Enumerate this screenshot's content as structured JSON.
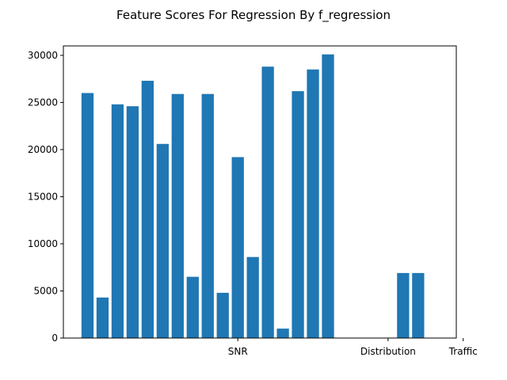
{
  "chart_data": {
    "type": "bar",
    "title": "Feature Scores For Regression By f_regression",
    "xlabel": "",
    "ylabel": "",
    "ylim": [
      0,
      31000
    ],
    "yticks": [
      0,
      5000,
      10000,
      15000,
      20000,
      25000,
      30000
    ],
    "color": "#1f77b4",
    "xticks": [
      {
        "label": "SNR",
        "index": 10
      },
      {
        "label": "Distribution",
        "index": 20
      },
      {
        "label": "Traffic",
        "index": 25
      }
    ],
    "values": [
      26000,
      4300,
      24800,
      24600,
      27300,
      20600,
      25900,
      6500,
      25900,
      4800,
      19200,
      8600,
      28800,
      1000,
      26200,
      28500,
      30100,
      0,
      0,
      0,
      0,
      6900,
      6900,
      0,
      0,
      0
    ],
    "grid": false,
    "legend": "none"
  }
}
